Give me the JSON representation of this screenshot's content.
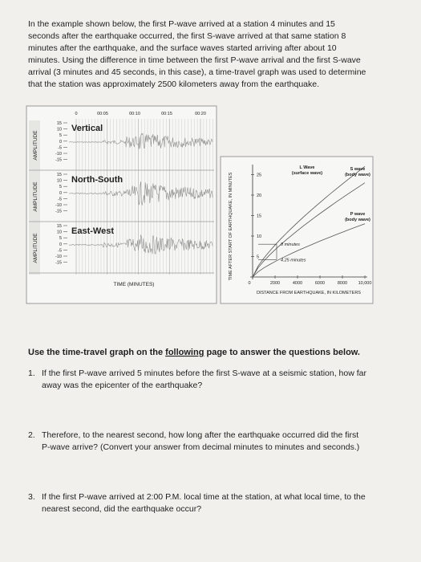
{
  "intro": {
    "lines": [
      "In the example shown below, the first P-wave arrived at a station 4 minutes and 15",
      "seconds after the earthquake occurred, the first S-wave arrived at that same station 8",
      "minutes after the earthquake, and the surface waves started arriving after about 10",
      "minutes.  Using the difference in time between the first P-wave arrival and the first S-wave",
      "arrival (3 minutes and 45 seconds, in this case), a time-travel graph was used to determine",
      "that the station was approximately 2500 kilometers away from the earthquake."
    ]
  },
  "seismogram": {
    "time_ticks": [
      "0",
      "00:05",
      "00:10",
      "00:15",
      "00:20"
    ],
    "amplitude_ticks": [
      "15",
      "10",
      "5",
      "0",
      "-5",
      "-10",
      "-15"
    ],
    "amplitude_label": "AMPLITUDE",
    "panels": [
      "Vertical",
      "North-South",
      "East-West"
    ],
    "x_label": "TIME (MINUTES)"
  },
  "travel_graph": {
    "y_label": "TIME AFTER START OF EARTHQUAKE, IN MINUTES",
    "y_ticks": [
      "5",
      "10",
      "15",
      "20",
      "25"
    ],
    "x_ticks": [
      "0",
      "2000",
      "4000",
      "6000",
      "8000",
      "10,000"
    ],
    "x_label": "DISTANCE FROM EARTHQUAKE, IN KILOMETERS",
    "curves": [
      {
        "name": "L Wave",
        "note": "(surface wave)"
      },
      {
        "name": "S wave",
        "note": "(body wave)"
      },
      {
        "name": "P wave",
        "note": "(body wave)"
      }
    ],
    "annotations": [
      "8 minutes",
      "4.25 minutes"
    ]
  },
  "instruction": {
    "before": "Use the time-travel graph on the ",
    "link": "following",
    "after": " page to answer the questions below."
  },
  "questions": [
    {
      "number": "1.",
      "lines": [
        "If the first P-wave arrived 5 minutes before the first S-wave at a seismic station, how far",
        "away was the epicenter of the earthquake?"
      ]
    },
    {
      "number": "2.",
      "lines": [
        "Therefore, to the nearest second, how long after the earthquake occurred did the first",
        "P-wave arrive? (Convert your answer from decimal minutes to minutes and seconds.)"
      ]
    },
    {
      "number": "3.",
      "lines": [
        "If the first P-wave arrived at 2:00 P.M. local time at the station, at what local time, to the",
        "nearest second, did the earthquake occur?"
      ]
    }
  ]
}
